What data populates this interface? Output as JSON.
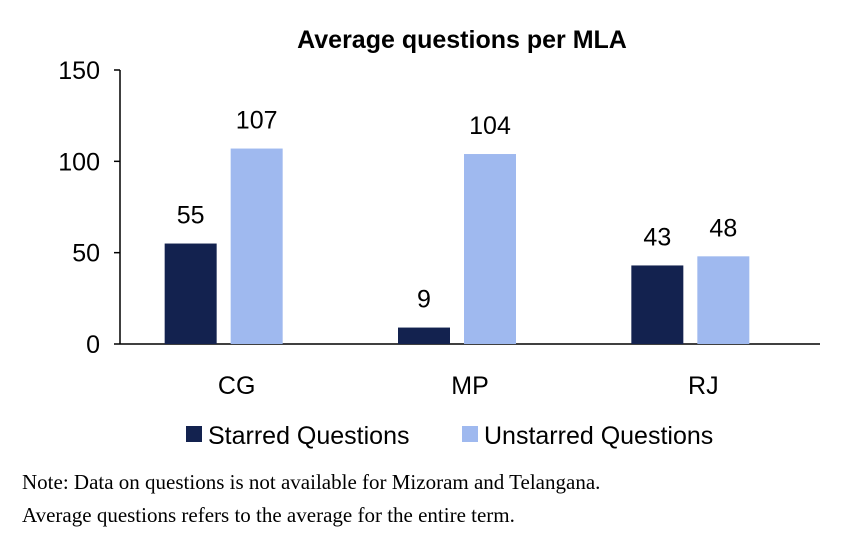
{
  "chart_data": {
    "type": "bar",
    "title": "Average questions per MLA",
    "categories": [
      "CG",
      "MP",
      "RJ"
    ],
    "series": [
      {
        "name": "Starred Questions",
        "values": [
          55,
          9,
          43
        ],
        "color": "#13224f"
      },
      {
        "name": "Unstarred Questions",
        "values": [
          107,
          104,
          48
        ],
        "color": "#9fb9ef"
      }
    ],
    "ylim": [
      0,
      150
    ],
    "yticks": [
      0,
      50,
      100,
      150
    ],
    "xlabel": "",
    "ylabel": "",
    "grid": false,
    "legend": "bottom"
  },
  "notes": [
    "Note: Data on questions is not available for Mizoram and Telangana.",
    "Average questions refers to the average for the entire term."
  ]
}
